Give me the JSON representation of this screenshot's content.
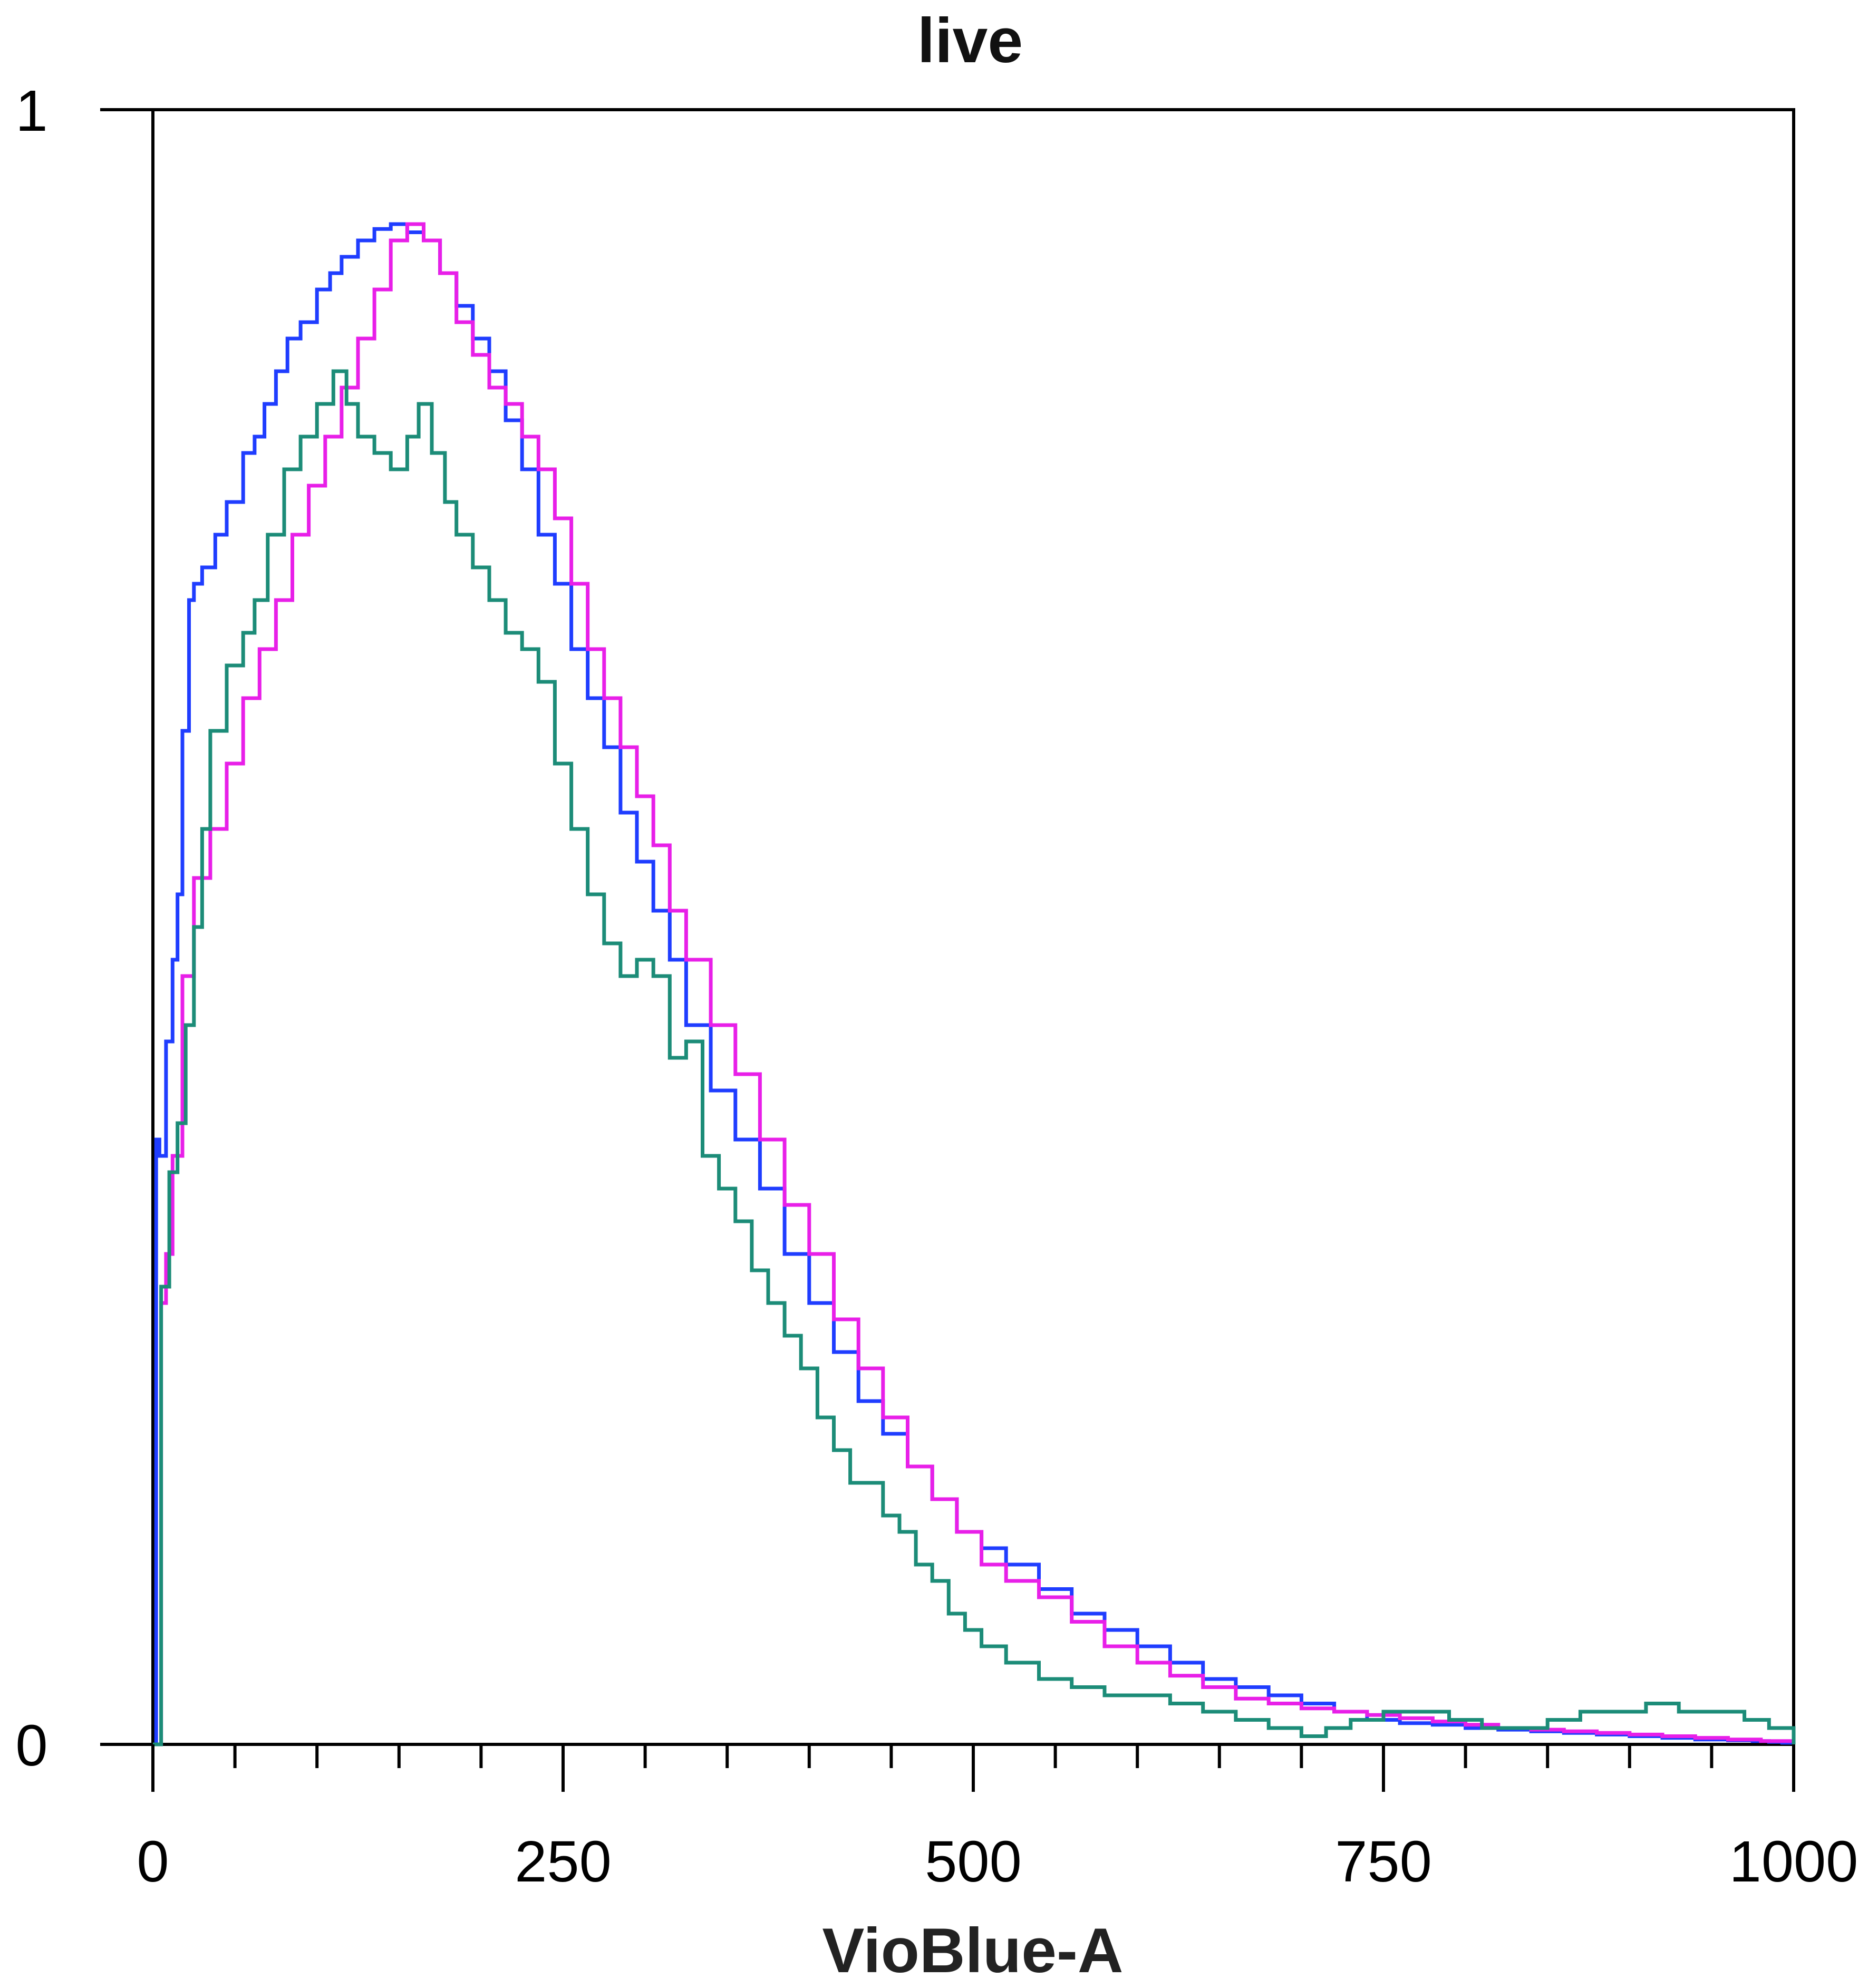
{
  "chart_data": {
    "type": "line",
    "title": "live",
    "xlabel": "VioBlue-A",
    "ylabel": "",
    "xlim": [
      0,
      1000
    ],
    "ylim": [
      0,
      1
    ],
    "x_ticks": [
      0,
      250,
      500,
      750,
      1000
    ],
    "y_ticks": [
      0,
      1
    ],
    "grid": false,
    "step": true,
    "series": [
      {
        "color": "#1f3dff",
        "x": [
          0,
          2,
          4,
          8,
          12,
          15,
          18,
          22,
          25,
          30,
          38,
          45,
          55,
          62,
          68,
          75,
          82,
          90,
          100,
          108,
          115,
          125,
          135,
          145,
          155,
          165,
          175,
          185,
          195,
          205,
          215,
          225,
          235,
          245,
          255,
          265,
          275,
          285,
          295,
          305,
          315,
          325,
          340,
          355,
          370,
          385,
          400,
          415,
          430,
          445,
          460,
          475,
          490,
          505,
          520,
          540,
          560,
          580,
          600,
          620,
          640,
          660,
          680,
          700,
          720,
          740,
          760,
          780,
          800,
          820,
          840,
          860,
          880,
          900,
          920,
          940,
          960,
          975,
          985,
          993,
          1000
        ],
        "y": [
          0.0,
          0.37,
          0.36,
          0.43,
          0.48,
          0.52,
          0.62,
          0.7,
          0.71,
          0.72,
          0.74,
          0.76,
          0.79,
          0.8,
          0.82,
          0.84,
          0.86,
          0.87,
          0.89,
          0.9,
          0.91,
          0.92,
          0.927,
          0.93,
          0.925,
          0.92,
          0.9,
          0.88,
          0.86,
          0.84,
          0.81,
          0.78,
          0.74,
          0.71,
          0.67,
          0.64,
          0.61,
          0.57,
          0.54,
          0.51,
          0.48,
          0.44,
          0.4,
          0.37,
          0.34,
          0.3,
          0.27,
          0.24,
          0.21,
          0.19,
          0.17,
          0.15,
          0.13,
          0.12,
          0.11,
          0.095,
          0.08,
          0.07,
          0.06,
          0.05,
          0.04,
          0.035,
          0.03,
          0.025,
          0.02,
          0.015,
          0.013,
          0.012,
          0.01,
          0.009,
          0.008,
          0.007,
          0.006,
          0.005,
          0.004,
          0.003,
          0.0025,
          0.002,
          0.0015,
          0.001,
          0.0
        ]
      },
      {
        "color": "#e81fe8",
        "x": [
          0,
          5,
          8,
          12,
          18,
          25,
          35,
          45,
          55,
          65,
          75,
          85,
          95,
          105,
          115,
          125,
          135,
          145,
          155,
          165,
          175,
          185,
          195,
          205,
          215,
          225,
          235,
          245,
          255,
          265,
          275,
          285,
          295,
          305,
          315,
          325,
          340,
          355,
          370,
          385,
          400,
          415,
          430,
          445,
          460,
          475,
          490,
          505,
          520,
          540,
          560,
          580,
          600,
          620,
          640,
          660,
          680,
          700,
          720,
          740,
          760,
          780,
          800,
          820,
          840,
          860,
          880,
          900,
          920,
          940,
          960,
          980,
          1000
        ],
        "y": [
          0.0,
          0.27,
          0.3,
          0.36,
          0.47,
          0.53,
          0.56,
          0.6,
          0.64,
          0.67,
          0.7,
          0.74,
          0.77,
          0.8,
          0.83,
          0.86,
          0.89,
          0.92,
          0.93,
          0.92,
          0.9,
          0.87,
          0.85,
          0.83,
          0.82,
          0.8,
          0.78,
          0.75,
          0.71,
          0.67,
          0.64,
          0.61,
          0.58,
          0.55,
          0.51,
          0.48,
          0.44,
          0.41,
          0.37,
          0.33,
          0.3,
          0.26,
          0.23,
          0.2,
          0.17,
          0.15,
          0.13,
          0.11,
          0.1,
          0.09,
          0.075,
          0.06,
          0.05,
          0.042,
          0.035,
          0.028,
          0.025,
          0.022,
          0.02,
          0.018,
          0.016,
          0.014,
          0.012,
          0.01,
          0.009,
          0.008,
          0.007,
          0.006,
          0.005,
          0.004,
          0.003,
          0.002,
          0.0
        ]
      },
      {
        "color": "#1c8c78",
        "x": [
          0,
          5,
          10,
          15,
          20,
          25,
          30,
          35,
          45,
          55,
          62,
          70,
          80,
          90,
          100,
          110,
          118,
          125,
          135,
          145,
          155,
          162,
          170,
          178,
          185,
          195,
          205,
          215,
          225,
          235,
          245,
          255,
          265,
          275,
          285,
          295,
          305,
          315,
          325,
          335,
          345,
          355,
          365,
          375,
          385,
          395,
          405,
          415,
          425,
          435,
          445,
          455,
          465,
          475,
          485,
          495,
          505,
          520,
          540,
          560,
          580,
          600,
          620,
          640,
          660,
          680,
          700,
          715,
          730,
          750,
          770,
          790,
          810,
          830,
          850,
          870,
          890,
          910,
          930,
          950,
          970,
          985,
          1000
        ],
        "y": [
          0.0,
          0.28,
          0.35,
          0.38,
          0.44,
          0.5,
          0.56,
          0.62,
          0.66,
          0.68,
          0.7,
          0.74,
          0.78,
          0.8,
          0.82,
          0.84,
          0.82,
          0.8,
          0.79,
          0.78,
          0.8,
          0.82,
          0.79,
          0.76,
          0.74,
          0.72,
          0.7,
          0.68,
          0.67,
          0.65,
          0.6,
          0.56,
          0.52,
          0.49,
          0.47,
          0.48,
          0.47,
          0.42,
          0.43,
          0.36,
          0.34,
          0.32,
          0.29,
          0.27,
          0.25,
          0.23,
          0.2,
          0.18,
          0.16,
          0.16,
          0.14,
          0.13,
          0.11,
          0.1,
          0.08,
          0.07,
          0.06,
          0.05,
          0.04,
          0.035,
          0.03,
          0.03,
          0.025,
          0.02,
          0.015,
          0.01,
          0.005,
          0.01,
          0.015,
          0.02,
          0.02,
          0.015,
          0.01,
          0.01,
          0.015,
          0.02,
          0.02,
          0.025,
          0.02,
          0.02,
          0.015,
          0.01,
          0.0
        ]
      }
    ]
  }
}
